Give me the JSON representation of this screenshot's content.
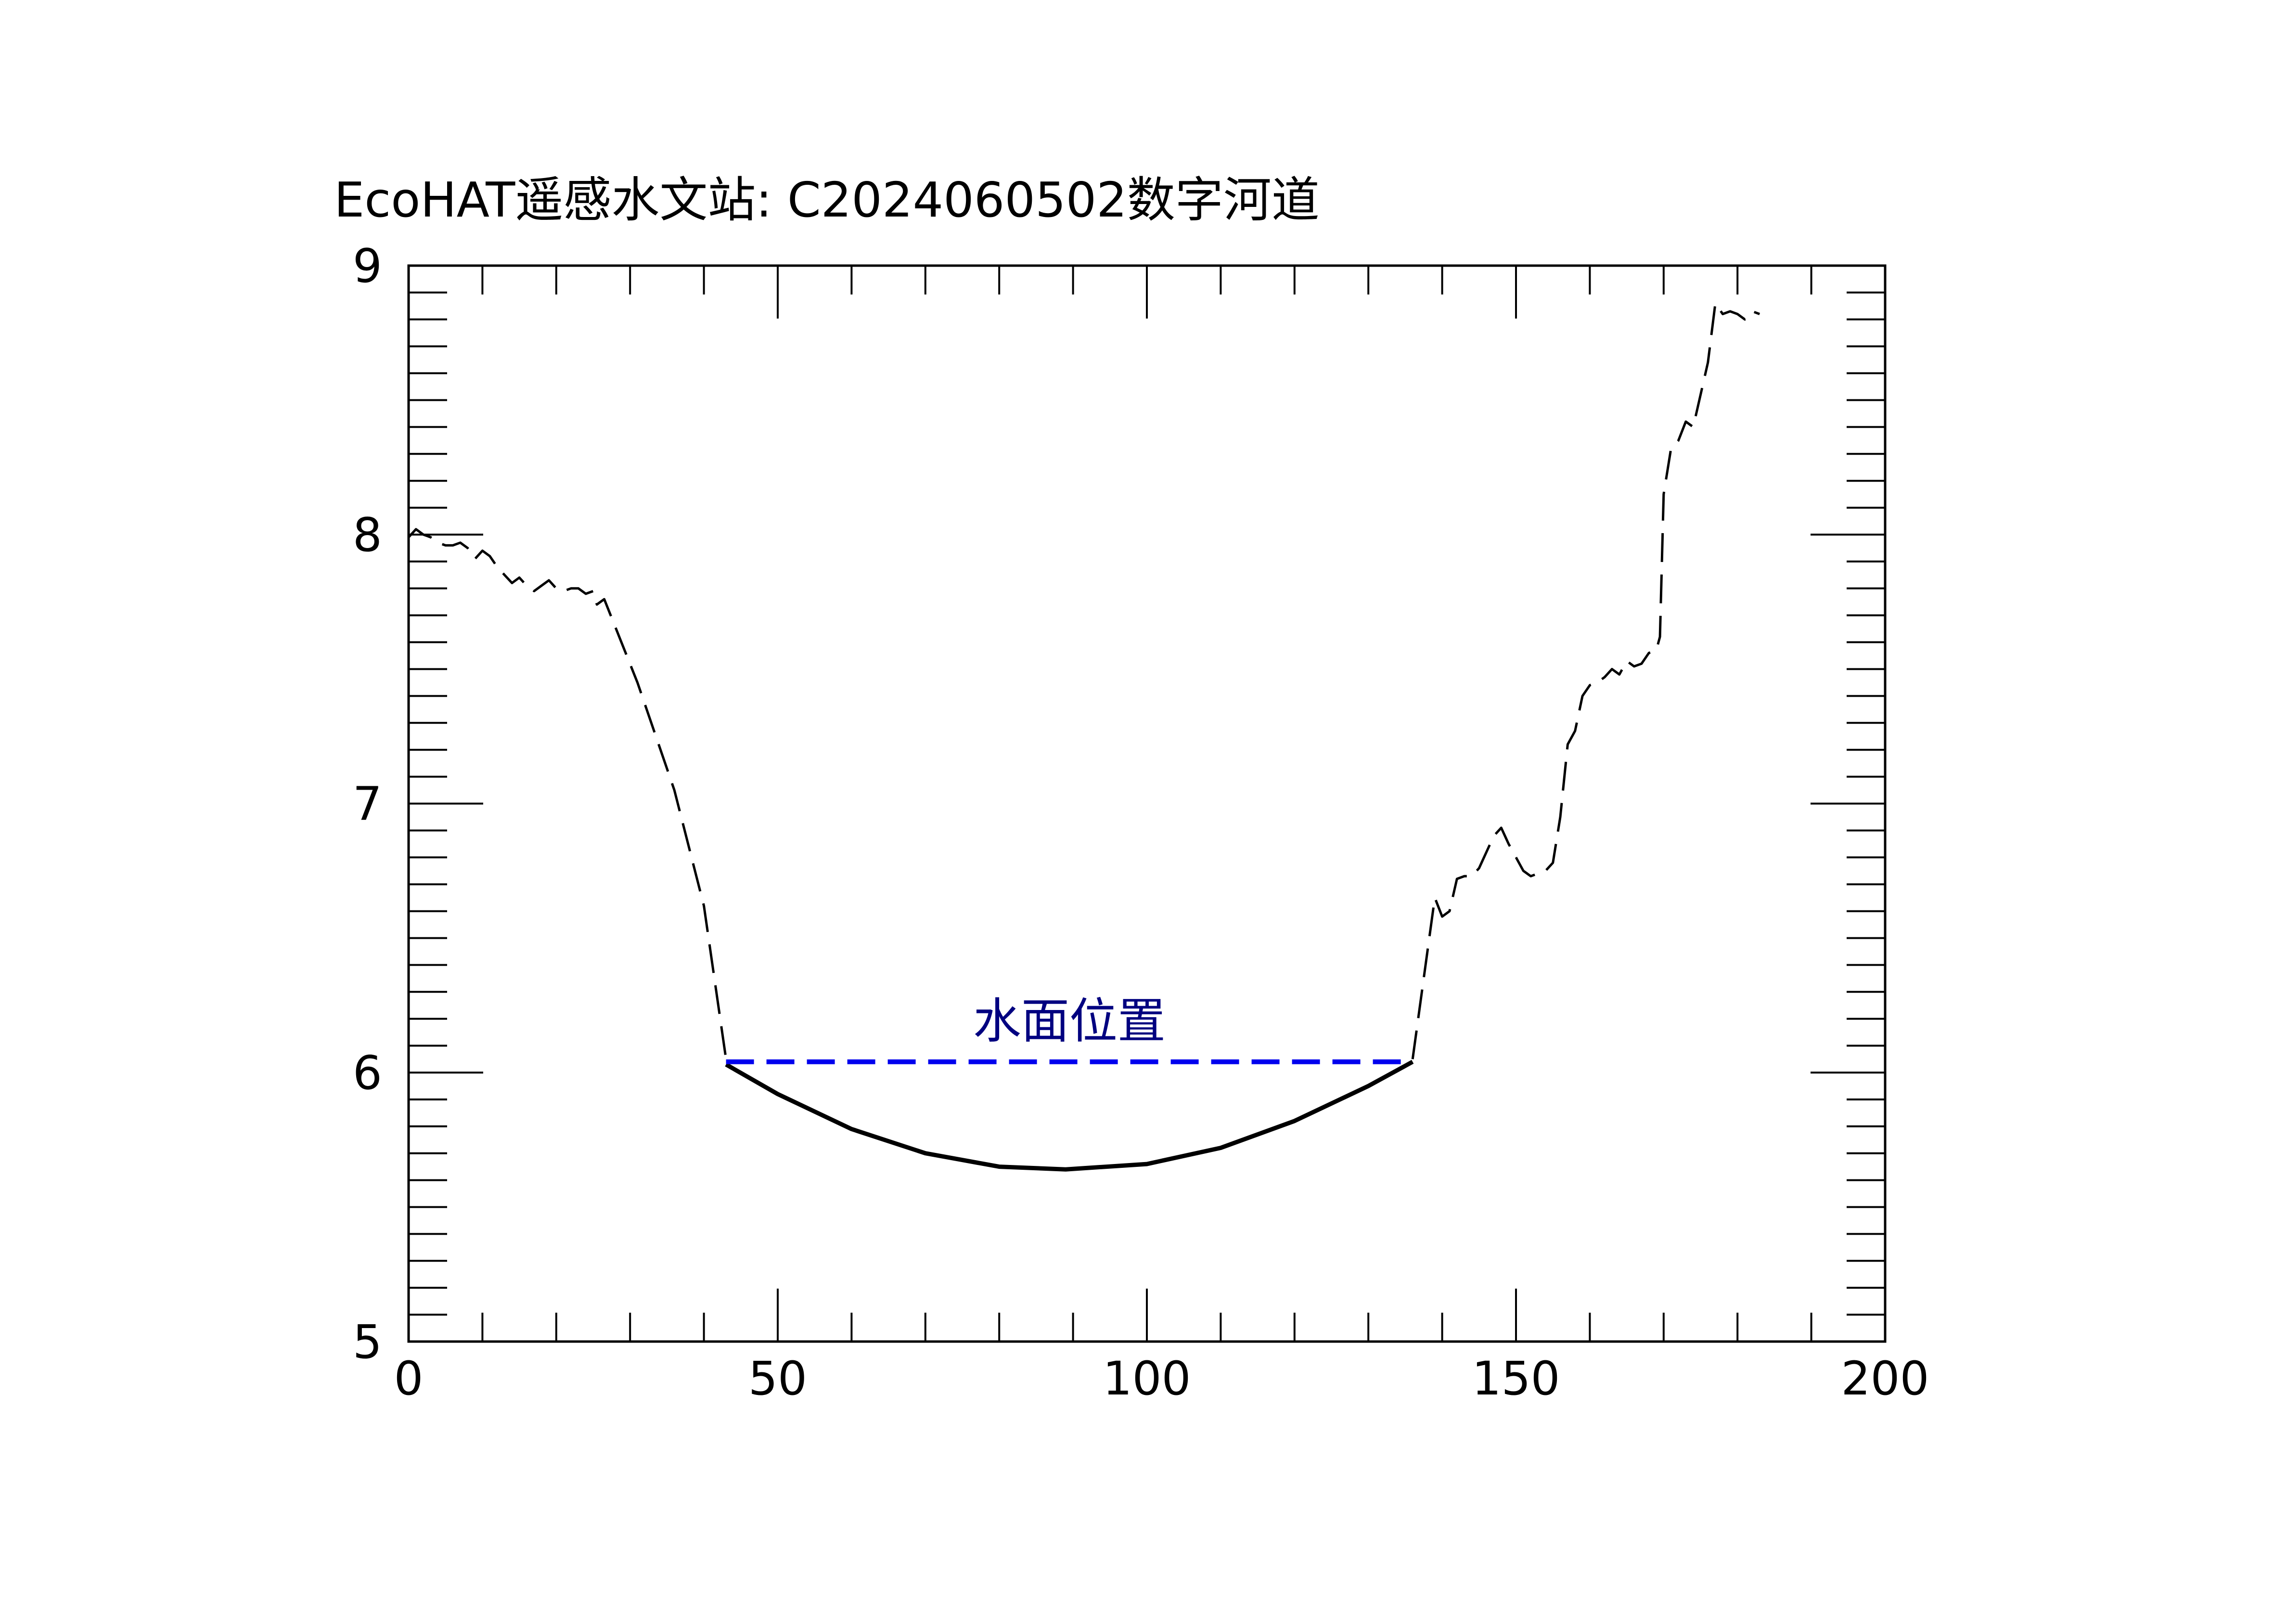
{
  "chart_data": {
    "type": "line",
    "title": "EcoHAT遥感水文站: C2024060502数字河道",
    "xlabel": "",
    "ylabel": "",
    "xlim": [
      0,
      200
    ],
    "ylim": [
      5,
      9
    ],
    "x_ticks": [
      0,
      50,
      100,
      150,
      200
    ],
    "y_ticks": [
      5,
      6,
      7,
      8,
      9
    ],
    "x_tick_labels": [
      "0",
      "50",
      "100",
      "150",
      "200"
    ],
    "y_tick_labels": [
      "5",
      "6",
      "7",
      "8",
      "9"
    ],
    "grid": false,
    "legend": "none",
    "series": [
      {
        "role": "terrain",
        "style": "dashed",
        "color": "#000000",
        "points": [
          [
            0,
            7.99
          ],
          [
            1,
            8.02
          ],
          [
            2,
            8.0
          ],
          [
            3,
            7.99
          ],
          [
            4,
            7.97
          ],
          [
            5,
            7.96
          ],
          [
            6,
            7.96
          ],
          [
            7,
            7.97
          ],
          [
            8,
            7.95
          ],
          [
            9,
            7.91
          ],
          [
            10,
            7.94
          ],
          [
            11,
            7.92
          ],
          [
            12,
            7.88
          ],
          [
            13,
            7.85
          ],
          [
            14,
            7.82
          ],
          [
            15,
            7.84
          ],
          [
            16,
            7.81
          ],
          [
            17,
            7.79
          ],
          [
            18,
            7.81
          ],
          [
            19,
            7.83
          ],
          [
            20,
            7.8
          ],
          [
            21,
            7.79
          ],
          [
            22,
            7.8
          ],
          [
            23,
            7.8
          ],
          [
            24,
            7.78
          ],
          [
            25,
            7.79
          ],
          [
            25.5,
            7.74
          ],
          [
            26.5,
            7.76
          ],
          [
            31,
            7.45
          ],
          [
            36,
            7.05
          ],
          [
            40,
            6.62
          ],
          [
            43,
            6.05
          ]
        ]
      },
      {
        "role": "terrain",
        "style": "dashed",
        "color": "#000000",
        "points": [
          [
            136,
            6.05
          ],
          [
            139,
            6.65
          ],
          [
            140,
            6.58
          ],
          [
            141,
            6.6
          ],
          [
            142,
            6.72
          ],
          [
            143,
            6.73
          ],
          [
            144,
            6.73
          ],
          [
            145,
            6.76
          ],
          [
            146,
            6.82
          ],
          [
            147,
            6.88
          ],
          [
            148,
            6.91
          ],
          [
            149,
            6.85
          ],
          [
            150,
            6.8
          ],
          [
            151,
            6.75
          ],
          [
            152,
            6.73
          ],
          [
            153,
            6.74
          ],
          [
            154,
            6.75
          ],
          [
            155,
            6.78
          ],
          [
            156,
            6.95
          ],
          [
            157,
            7.22
          ],
          [
            158,
            7.27
          ],
          [
            159,
            7.4
          ],
          [
            160,
            7.44
          ],
          [
            161,
            7.45
          ],
          [
            162,
            7.47
          ],
          [
            163,
            7.5
          ],
          [
            164,
            7.48
          ],
          [
            165,
            7.53
          ],
          [
            166,
            7.51
          ],
          [
            167,
            7.52
          ],
          [
            168,
            7.56
          ],
          [
            169,
            7.57
          ],
          [
            169.5,
            7.62
          ],
          [
            170,
            8.15
          ],
          [
            171,
            8.32
          ],
          [
            172,
            8.35
          ],
          [
            173,
            8.42
          ],
          [
            174,
            8.4
          ],
          [
            175,
            8.52
          ],
          [
            176,
            8.64
          ],
          [
            177,
            8.86
          ],
          [
            178,
            8.82
          ],
          [
            179,
            8.83
          ],
          [
            180,
            8.82
          ],
          [
            181,
            8.8
          ],
          [
            182,
            8.83
          ],
          [
            183,
            8.82
          ]
        ]
      },
      {
        "role": "riverbed",
        "style": "solid",
        "color": "#000000",
        "points": [
          [
            43,
            6.03
          ],
          [
            50,
            5.92
          ],
          [
            60,
            5.79
          ],
          [
            70,
            5.7
          ],
          [
            80,
            5.65
          ],
          [
            89,
            5.64
          ],
          [
            100,
            5.66
          ],
          [
            110,
            5.72
          ],
          [
            120,
            5.82
          ],
          [
            130,
            5.95
          ],
          [
            136,
            6.04
          ]
        ]
      },
      {
        "role": "water-surface",
        "style": "dashed",
        "color": "#0000ee",
        "points": [
          [
            43,
            6.04
          ],
          [
            136,
            6.04
          ]
        ]
      }
    ],
    "annotations": [
      {
        "text": "水面位置",
        "x": 89.5,
        "y": 6.13,
        "color": "#000080"
      }
    ]
  }
}
